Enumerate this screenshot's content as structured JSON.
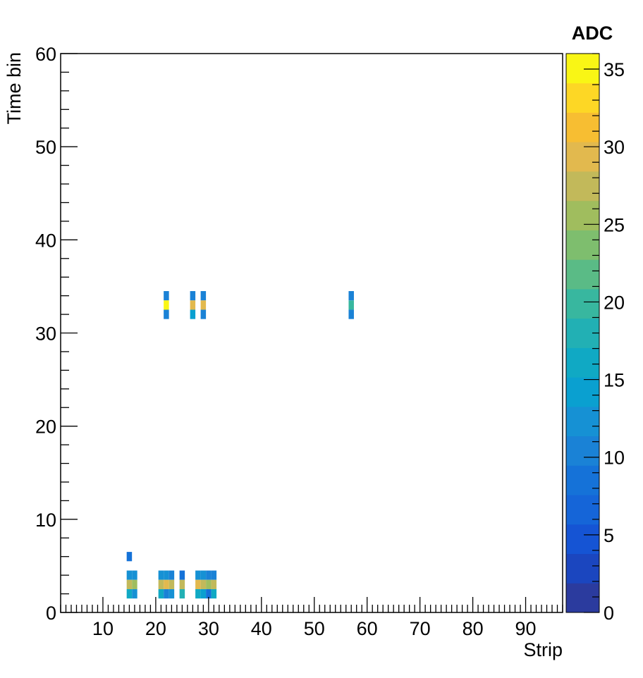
{
  "chart_data": {
    "type": "heatmap",
    "title": "",
    "xlabel": "Strip",
    "ylabel": "Time bin",
    "zlabel": "ADC",
    "xlim": [
      2,
      97
    ],
    "ylim": [
      0,
      60
    ],
    "zlim": [
      0,
      36
    ],
    "x_ticks": [
      10,
      20,
      30,
      40,
      50,
      60,
      70,
      80,
      90
    ],
    "y_ticks": [
      0,
      10,
      20,
      30,
      40,
      50,
      60
    ],
    "z_ticks": [
      0,
      5,
      10,
      15,
      20,
      25,
      30,
      35
    ],
    "grid": false,
    "colormap": [
      "#2b3b9e",
      "#1b46bf",
      "#1554d4",
      "#1565d8",
      "#1572d8",
      "#1a82d6",
      "#1691d4",
      "#0aa0d0",
      "#10a9c4",
      "#22b0b4",
      "#38b79f",
      "#5abb86",
      "#7ebe6e",
      "#a0bd5e",
      "#c2b95a",
      "#e2b94e",
      "#f7be32",
      "#fdd725",
      "#f9f615"
    ],
    "cells": [
      {
        "x": 15,
        "y": 6,
        "v": 9
      },
      {
        "x": 15,
        "y": 4,
        "v": 13
      },
      {
        "x": 16,
        "y": 4,
        "v": 12
      },
      {
        "x": 15,
        "y": 3,
        "v": 28
      },
      {
        "x": 16,
        "y": 3,
        "v": 26
      },
      {
        "x": 15,
        "y": 2,
        "v": 16
      },
      {
        "x": 16,
        "y": 2,
        "v": 13
      },
      {
        "x": 21,
        "y": 4,
        "v": 12
      },
      {
        "x": 22,
        "y": 4,
        "v": 13
      },
      {
        "x": 23,
        "y": 4,
        "v": 10
      },
      {
        "x": 21,
        "y": 3,
        "v": 27
      },
      {
        "x": 22,
        "y": 3,
        "v": 30
      },
      {
        "x": 23,
        "y": 3,
        "v": 28
      },
      {
        "x": 21,
        "y": 2,
        "v": 16
      },
      {
        "x": 22,
        "y": 2,
        "v": 11
      },
      {
        "x": 23,
        "y": 2,
        "v": 13
      },
      {
        "x": 25,
        "y": 4,
        "v": 8
      },
      {
        "x": 25,
        "y": 3,
        "v": 28
      },
      {
        "x": 25,
        "y": 2,
        "v": 18
      },
      {
        "x": 28,
        "y": 4,
        "v": 12
      },
      {
        "x": 29,
        "y": 4,
        "v": 13
      },
      {
        "x": 30,
        "y": 4,
        "v": 11
      },
      {
        "x": 31,
        "y": 4,
        "v": 10
      },
      {
        "x": 28,
        "y": 3,
        "v": 29
      },
      {
        "x": 29,
        "y": 3,
        "v": 28
      },
      {
        "x": 30,
        "y": 3,
        "v": 25
      },
      {
        "x": 31,
        "y": 3,
        "v": 28
      },
      {
        "x": 28,
        "y": 2,
        "v": 16
      },
      {
        "x": 29,
        "y": 2,
        "v": 14
      },
      {
        "x": 30,
        "y": 2,
        "v": 9
      },
      {
        "x": 31,
        "y": 2,
        "v": 17
      },
      {
        "x": 22,
        "y": 34,
        "v": 11
      },
      {
        "x": 22,
        "y": 33,
        "v": 36
      },
      {
        "x": 22,
        "y": 32,
        "v": 10
      },
      {
        "x": 27,
        "y": 34,
        "v": 11
      },
      {
        "x": 27,
        "y": 33,
        "v": 29
      },
      {
        "x": 27,
        "y": 32,
        "v": 14
      },
      {
        "x": 29,
        "y": 34,
        "v": 11
      },
      {
        "x": 29,
        "y": 33,
        "v": 29
      },
      {
        "x": 29,
        "y": 32,
        "v": 11
      },
      {
        "x": 57,
        "y": 34,
        "v": 10
      },
      {
        "x": 57,
        "y": 33,
        "v": 20
      },
      {
        "x": 57,
        "y": 32,
        "v": 11
      }
    ]
  }
}
